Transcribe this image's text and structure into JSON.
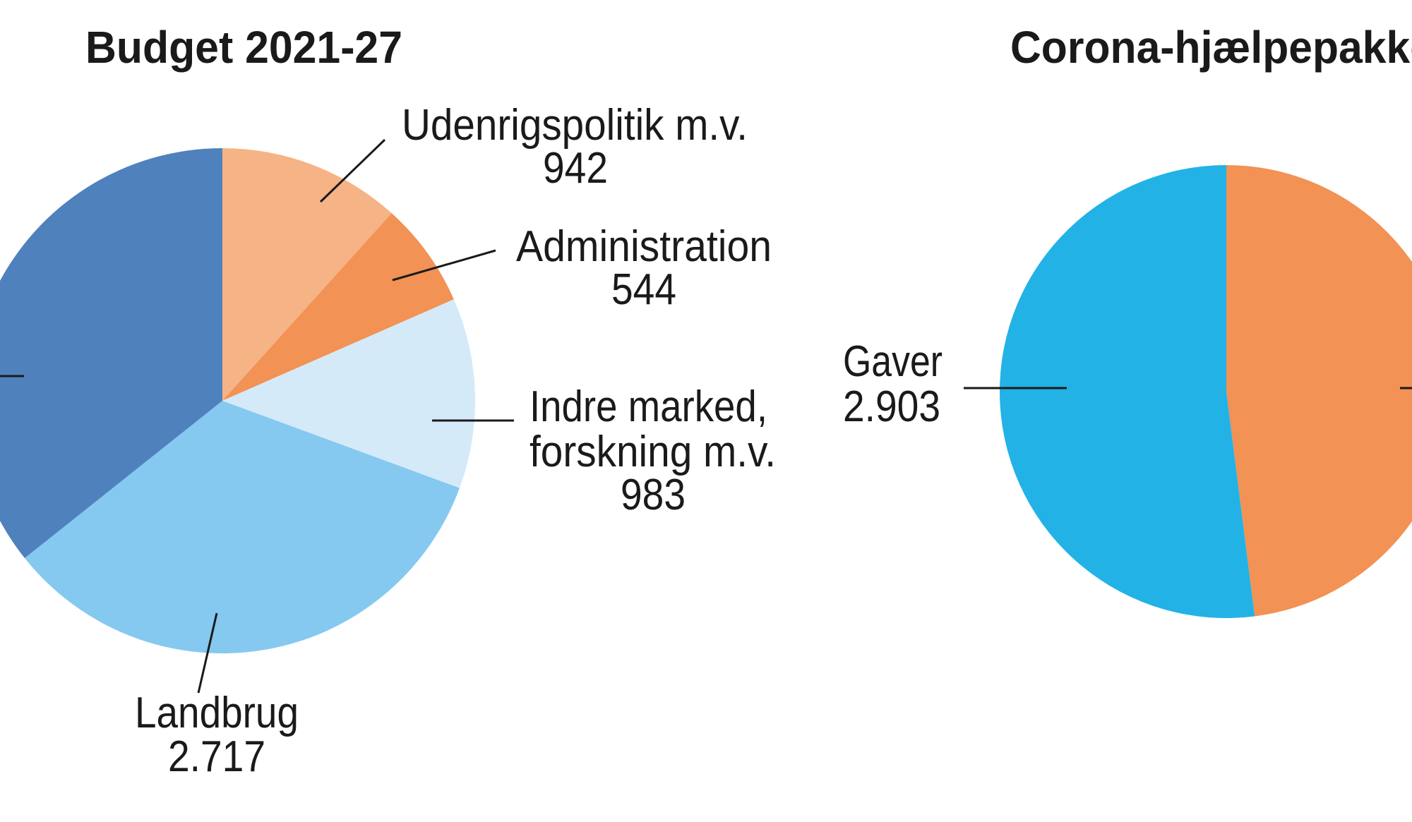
{
  "chart_data": [
    {
      "type": "pie",
      "title": "Budget 2021-27",
      "start": "top",
      "direction": "clockwise",
      "slices": [
        {
          "label": "Udenrigspolitik m.v.",
          "value_label": "942",
          "value": 942,
          "color": "#f6b386"
        },
        {
          "label": "Administration",
          "value_label": "544",
          "value": 544,
          "color": "#f29254"
        },
        {
          "label": "Indre marked,",
          "label2": "forskning m.v.",
          "value_label": "983",
          "value": 983,
          "color": "#d5eaf8"
        },
        {
          "label": "Landbrug",
          "value_label": "2.717",
          "value": 2717,
          "color": "#85c9f0"
        },
        {
          "value": 2880,
          "color": "#4f81bd"
        }
      ]
    },
    {
      "type": "pie",
      "title": "Corona-hjælpepakke",
      "start": "top",
      "direction": "clockwise",
      "slices": [
        {
          "value": 2680,
          "color": "#f29254"
        },
        {
          "label": "Gaver",
          "value_label": "2.903",
          "value": 2903,
          "color": "#23b2e6"
        }
      ]
    }
  ]
}
